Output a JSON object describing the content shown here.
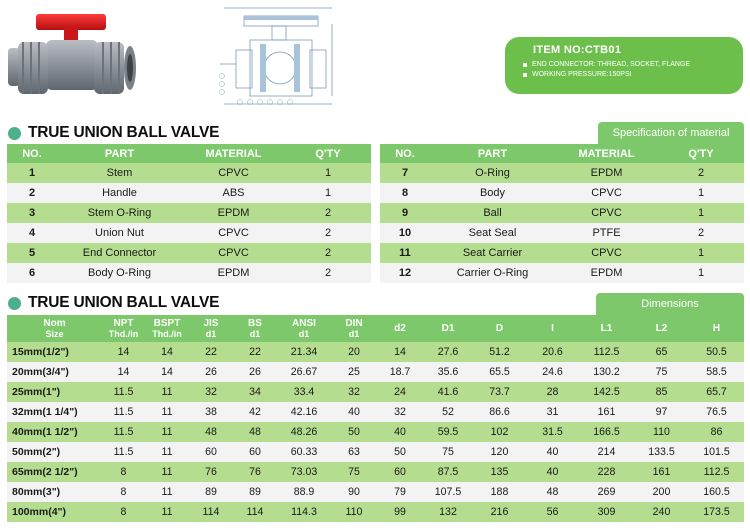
{
  "item_box": {
    "title": "ITEM NO:CTB01",
    "lines": [
      "END CONNECTOR: THREAD, SOCKET, FLANGE",
      "WORKING  PRESSURE:150PSI"
    ]
  },
  "material_section": {
    "title": "TRUE UNION BALL VALVE",
    "tab": "Specification of material",
    "headers": [
      "NO.",
      "PART",
      "MATERIAL",
      "Q'TY"
    ],
    "left_rows": [
      {
        "no": "1",
        "part": "Stem",
        "material": "CPVC",
        "qty": "1"
      },
      {
        "no": "2",
        "part": "Handle",
        "material": "ABS",
        "qty": "1"
      },
      {
        "no": "3",
        "part": "Stem  O-Ring",
        "material": "EPDM",
        "qty": "2"
      },
      {
        "no": "4",
        "part": "Union  Nut",
        "material": "CPVC",
        "qty": "2"
      },
      {
        "no": "5",
        "part": "End  Connector",
        "material": "CPVC",
        "qty": "2"
      },
      {
        "no": "6",
        "part": "Body  O-Ring",
        "material": "EPDM",
        "qty": "2"
      }
    ],
    "right_rows": [
      {
        "no": "7",
        "part": "O-Ring",
        "material": "EPDM",
        "qty": "2"
      },
      {
        "no": "8",
        "part": "Body",
        "material": "CPVC",
        "qty": "1"
      },
      {
        "no": "9",
        "part": "Ball",
        "material": "CPVC",
        "qty": "1"
      },
      {
        "no": "10",
        "part": "Seat Seal",
        "material": "PTFE",
        "qty": "2"
      },
      {
        "no": "11",
        "part": "Seat  Carrier",
        "material": "CPVC",
        "qty": "1"
      },
      {
        "no": "12",
        "part": "Carrier  O-Ring",
        "material": "EPDM",
        "qty": "1"
      }
    ]
  },
  "dimension_section": {
    "title": "TRUE UNION BALL VALVE",
    "tab": "Dimensions",
    "headers": [
      {
        "top": "Nom",
        "sub": "Size"
      },
      {
        "top": "NPT",
        "sub": "Thd./in"
      },
      {
        "top": "BSPT",
        "sub": "Thd./in"
      },
      {
        "top": "JIS",
        "sub": "d1"
      },
      {
        "top": "BS",
        "sub": "d1"
      },
      {
        "top": "ANSI",
        "sub": "d1"
      },
      {
        "top": "DIN",
        "sub": "d1"
      },
      {
        "top": "d2",
        "sub": ""
      },
      {
        "top": "D1",
        "sub": ""
      },
      {
        "top": "D",
        "sub": ""
      },
      {
        "top": "I",
        "sub": ""
      },
      {
        "top": "L1",
        "sub": ""
      },
      {
        "top": "L2",
        "sub": ""
      },
      {
        "top": "H",
        "sub": ""
      }
    ],
    "rows": [
      [
        "15mm(1/2\")",
        "14",
        "14",
        "22",
        "22",
        "21.34",
        "20",
        "14",
        "27.6",
        "51.2",
        "20.6",
        "112.5",
        "65",
        "50.5"
      ],
      [
        "20mm(3/4\")",
        "14",
        "14",
        "26",
        "26",
        "26.67",
        "25",
        "18.7",
        "35.6",
        "65.5",
        "24.6",
        "130.2",
        "75",
        "58.5"
      ],
      [
        "25mm(1\")",
        "11.5",
        "11",
        "32",
        "34",
        "33.4",
        "32",
        "24",
        "41.6",
        "73.7",
        "28",
        "142.5",
        "85",
        "65.7"
      ],
      [
        "32mm(1 1/4\")",
        "11.5",
        "11",
        "38",
        "42",
        "42.16",
        "40",
        "32",
        "52",
        "86.6",
        "31",
        "161",
        "97",
        "76.5"
      ],
      [
        "40mm(1 1/2\")",
        "11.5",
        "11",
        "48",
        "48",
        "48.26",
        "50",
        "40",
        "59.5",
        "102",
        "31.5",
        "166.5",
        "110",
        "86"
      ],
      [
        "50mm(2\")",
        "11.5",
        "11",
        "60",
        "60",
        "60.33",
        "63",
        "50",
        "75",
        "120",
        "40",
        "214",
        "133.5",
        "101.5"
      ],
      [
        "65mm(2 1/2\")",
        "8",
        "11",
        "76",
        "76",
        "73.03",
        "75",
        "60",
        "87.5",
        "135",
        "40",
        "228",
        "161",
        "112.5"
      ],
      [
        "80mm(3\")",
        "8",
        "11",
        "89",
        "89",
        "88.9",
        "90",
        "79",
        "107.5",
        "188",
        "48",
        "269",
        "200",
        "160.5"
      ],
      [
        "100mm(4\")",
        "8",
        "11",
        "114",
        "114",
        "114.3",
        "110",
        "99",
        "132",
        "216",
        "56",
        "309",
        "240",
        "173.5"
      ]
    ]
  }
}
